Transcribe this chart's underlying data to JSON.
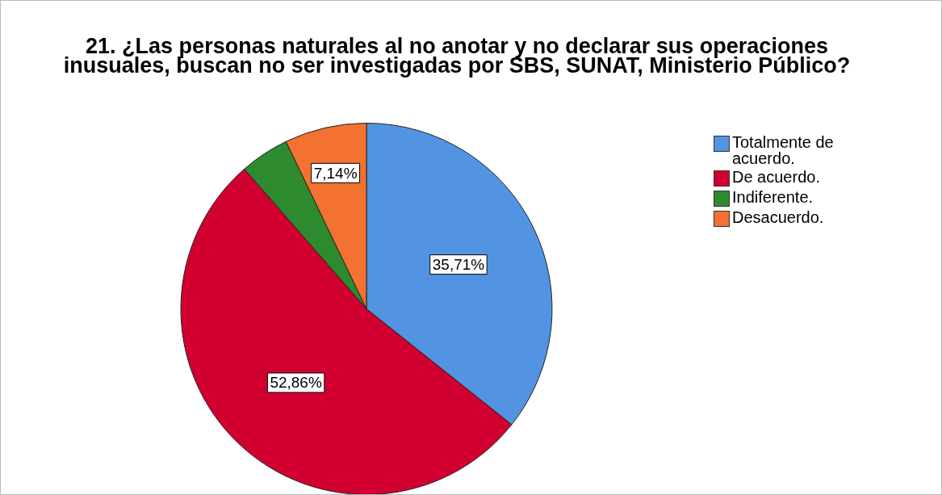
{
  "chart_data": {
    "type": "pie",
    "title": "21. ¿Las personas naturales al no anotar y no declarar sus operaciones inusuales, buscan no ser investigadas por SBS, SUNAT, Ministerio Público?",
    "categories": [
      "Totalmente de acuerdo.",
      "De acuerdo.",
      "Indiferente.",
      "Desacuerdo."
    ],
    "values": [
      35.71,
      52.86,
      4.29,
      7.14
    ],
    "colors": [
      "#5294e2",
      "#d20030",
      "#2e8a2e",
      "#f37131"
    ],
    "value_labels": [
      "35,71%",
      "52,86%",
      null,
      "7,14%"
    ],
    "legend": "top right"
  }
}
